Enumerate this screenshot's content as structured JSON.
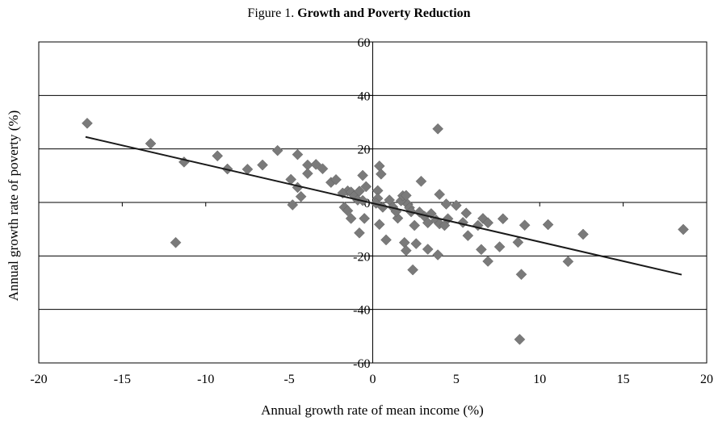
{
  "chart_data": {
    "type": "scatter",
    "title_prefix": "Figure 1.",
    "title": "Growth and Poverty Reduction",
    "xlabel": "Annual growth rate of mean income (%)",
    "ylabel": "Annual growth rate of poverty (%)",
    "xlim": [
      -20,
      20
    ],
    "ylim": [
      -60,
      60
    ],
    "xticks": [
      -20,
      -15,
      -10,
      -5,
      0,
      5,
      10,
      15,
      20
    ],
    "yticks": [
      -60,
      -40,
      -20,
      0,
      20,
      40,
      60
    ],
    "grid": "horizontal",
    "marker_color": "#7a7a7a",
    "line_color": "#1a1a1a",
    "trendline": {
      "x": [
        -17.2,
        18.5
      ],
      "y": [
        24.5,
        -27
      ]
    },
    "points": [
      {
        "x": -17.1,
        "y": 29.6
      },
      {
        "x": -13.3,
        "y": 22.0
      },
      {
        "x": -11.3,
        "y": 15.1
      },
      {
        "x": -11.8,
        "y": -15.0
      },
      {
        "x": -9.3,
        "y": 17.4
      },
      {
        "x": -8.7,
        "y": 12.5
      },
      {
        "x": -7.5,
        "y": 12.4
      },
      {
        "x": -6.6,
        "y": 14.0
      },
      {
        "x": -5.7,
        "y": 19.4
      },
      {
        "x": -4.9,
        "y": 8.6
      },
      {
        "x": -4.5,
        "y": 17.9
      },
      {
        "x": -4.5,
        "y": 5.6
      },
      {
        "x": -4.3,
        "y": 2.2
      },
      {
        "x": -4.8,
        "y": -0.9
      },
      {
        "x": -3.9,
        "y": 14.0
      },
      {
        "x": -3.9,
        "y": 10.8
      },
      {
        "x": -3.4,
        "y": 14.2
      },
      {
        "x": -3.0,
        "y": 12.6
      },
      {
        "x": -2.5,
        "y": 7.5
      },
      {
        "x": -2.2,
        "y": 8.5
      },
      {
        "x": -1.5,
        "y": 4.3
      },
      {
        "x": -1.8,
        "y": 3.5
      },
      {
        "x": -1.3,
        "y": 3.9
      },
      {
        "x": -1.1,
        "y": 2.5
      },
      {
        "x": -0.8,
        "y": 4.2
      },
      {
        "x": -1.7,
        "y": -1.8
      },
      {
        "x": -1.5,
        "y": -3.1
      },
      {
        "x": -1.3,
        "y": -6.0
      },
      {
        "x": -0.6,
        "y": 10.1
      },
      {
        "x": -0.4,
        "y": 5.9
      },
      {
        "x": -0.5,
        "y": -6.0
      },
      {
        "x": -0.8,
        "y": -11.4
      },
      {
        "x": -0.9,
        "y": 0.9
      },
      {
        "x": -0.6,
        "y": 0.7
      },
      {
        "x": 0.3,
        "y": 4.4
      },
      {
        "x": 0.4,
        "y": 13.6
      },
      {
        "x": 0.5,
        "y": 10.6
      },
      {
        "x": 0.3,
        "y": 1.5
      },
      {
        "x": 0.2,
        "y": -0.3
      },
      {
        "x": 0.6,
        "y": -1.8
      },
      {
        "x": 0.4,
        "y": -8.2
      },
      {
        "x": 0.8,
        "y": -14.0
      },
      {
        "x": 1.0,
        "y": 0.9
      },
      {
        "x": 1.2,
        "y": -1.7
      },
      {
        "x": 1.5,
        "y": -5.9
      },
      {
        "x": 1.4,
        "y": -3.4
      },
      {
        "x": 1.7,
        "y": 0.6
      },
      {
        "x": 1.8,
        "y": 2.5
      },
      {
        "x": 2.0,
        "y": 2.6
      },
      {
        "x": 2.1,
        "y": -0.7
      },
      {
        "x": 2.2,
        "y": -2.0
      },
      {
        "x": 1.9,
        "y": -15.0
      },
      {
        "x": 2.0,
        "y": -18.0
      },
      {
        "x": 2.3,
        "y": -3.5
      },
      {
        "x": 2.5,
        "y": -8.6
      },
      {
        "x": 2.8,
        "y": -3.6
      },
      {
        "x": 2.6,
        "y": -15.4
      },
      {
        "x": 2.4,
        "y": -25.2
      },
      {
        "x": 2.9,
        "y": 7.9
      },
      {
        "x": 3.1,
        "y": -5.2
      },
      {
        "x": 3.3,
        "y": -7.6
      },
      {
        "x": 3.5,
        "y": -4.2
      },
      {
        "x": 3.3,
        "y": -17.5
      },
      {
        "x": 3.8,
        "y": -6.6
      },
      {
        "x": 4.0,
        "y": -8.0
      },
      {
        "x": 3.9,
        "y": 27.5
      },
      {
        "x": 4.0,
        "y": 3.0
      },
      {
        "x": 4.3,
        "y": -8.6
      },
      {
        "x": 4.5,
        "y": -6.1
      },
      {
        "x": 4.4,
        "y": -0.6
      },
      {
        "x": 3.9,
        "y": -19.6
      },
      {
        "x": 5.0,
        "y": -1.1
      },
      {
        "x": 5.4,
        "y": -7.5
      },
      {
        "x": 5.6,
        "y": -4.0
      },
      {
        "x": 5.7,
        "y": -12.4
      },
      {
        "x": 6.3,
        "y": -8.6
      },
      {
        "x": 6.6,
        "y": -6.0
      },
      {
        "x": 6.5,
        "y": -17.6
      },
      {
        "x": 6.9,
        "y": -7.6
      },
      {
        "x": 6.9,
        "y": -22.0
      },
      {
        "x": 7.6,
        "y": -16.6
      },
      {
        "x": 7.8,
        "y": -6.1
      },
      {
        "x": 8.7,
        "y": -14.9
      },
      {
        "x": 9.1,
        "y": -8.5
      },
      {
        "x": 8.9,
        "y": -26.9
      },
      {
        "x": 8.8,
        "y": -51.2
      },
      {
        "x": 10.5,
        "y": -8.3
      },
      {
        "x": 11.7,
        "y": -22.1
      },
      {
        "x": 12.6,
        "y": -11.9
      },
      {
        "x": 18.6,
        "y": -10.1
      }
    ]
  }
}
